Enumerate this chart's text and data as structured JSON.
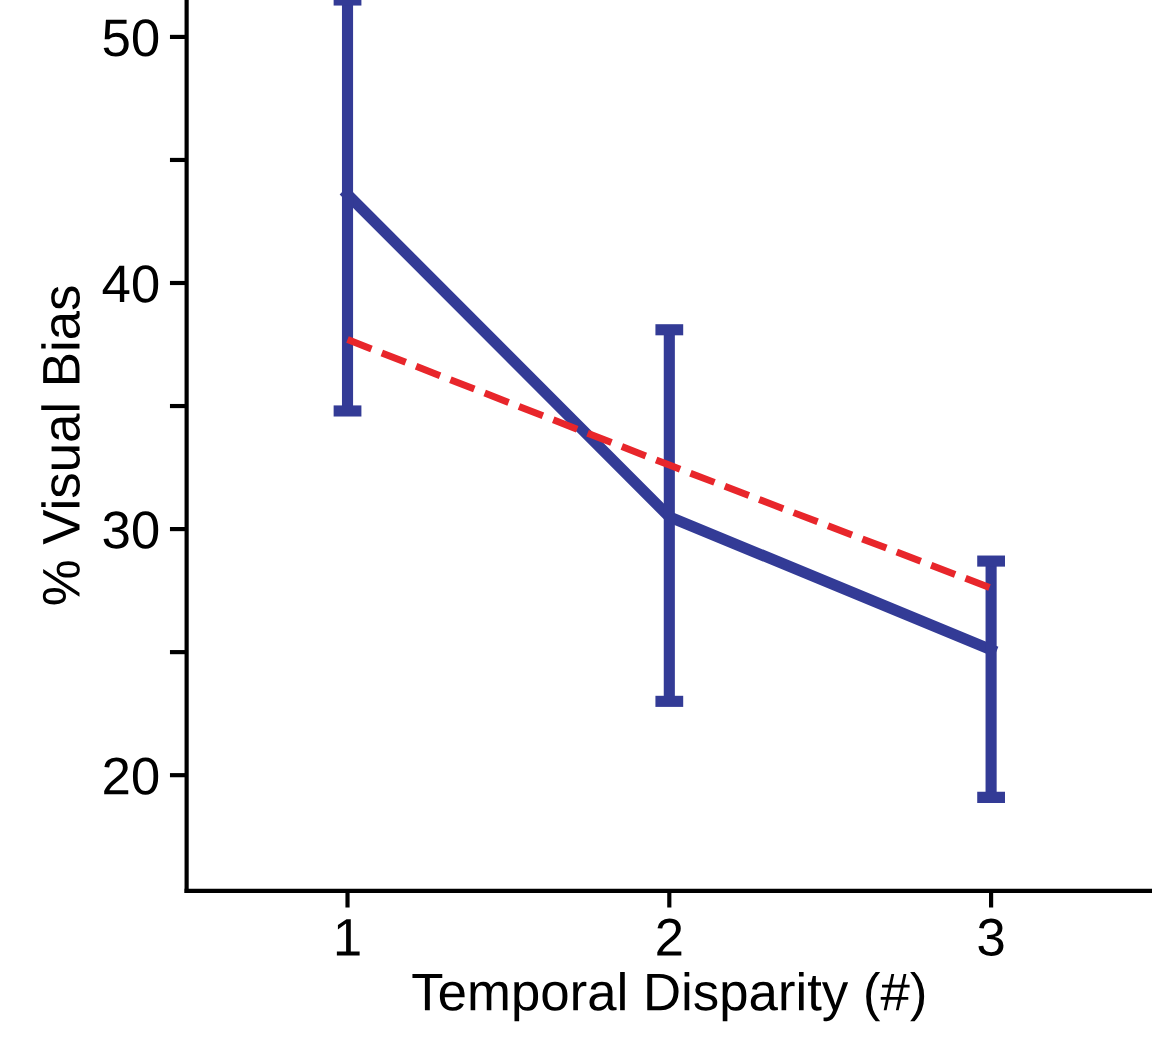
{
  "chart_data": {
    "type": "line",
    "xlabel": "Temporal Disparity (#)",
    "ylabel": "% Visual Bias",
    "xlim": [
      0.5,
      3.5
    ],
    "xticks": [
      1,
      2,
      3
    ],
    "ylim": [
      15.3,
      51.5
    ],
    "yticks": [
      20,
      {
        "value": 25,
        "label": null
      },
      30,
      {
        "value": 35,
        "label": null
      },
      40,
      {
        "value": 45,
        "label": null
      },
      50
    ],
    "grid": false,
    "legend": false,
    "marker": "none",
    "series": [
      {
        "color": "#333b96",
        "line_style": "solid",
        "x": [
          1,
          2,
          3
        ],
        "values": [
          43.6,
          30.5,
          25.1
        ],
        "errors": [
          [
            34.8,
            51.5
          ],
          [
            23.0,
            38.1
          ],
          [
            19.1,
            28.7
          ]
        ]
      },
      {
        "color": "#e8262b",
        "line_style": "dashed",
        "x": [
          1,
          2,
          3
        ],
        "values": [
          37.7,
          32.6,
          27.6
        ]
      }
    ]
  }
}
